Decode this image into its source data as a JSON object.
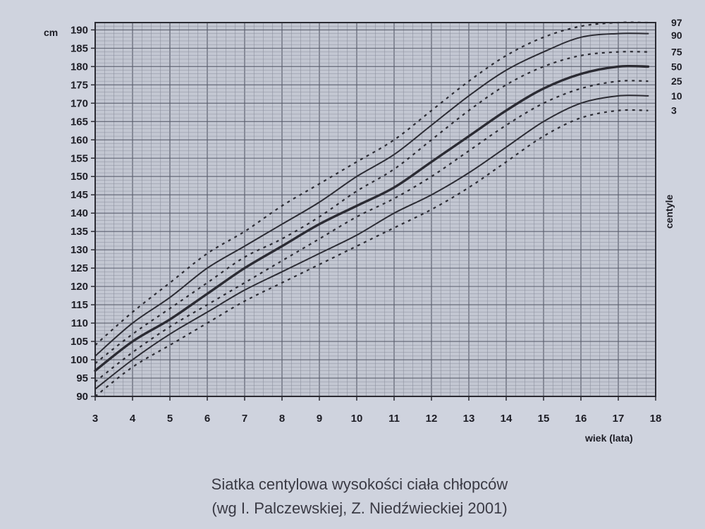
{
  "chart_data": {
    "type": "line",
    "title": "",
    "xlabel": "wiek (lata)",
    "ylabel": "cm",
    "legend_title": "centyle",
    "xlim": [
      3,
      18
    ],
    "ylim": [
      90,
      192
    ],
    "x_ticks": [
      "3",
      "4",
      "5",
      "6",
      "7",
      "8",
      "9",
      "10",
      "11",
      "12",
      "13",
      "14",
      "15",
      "16",
      "17",
      "18"
    ],
    "y_ticks": [
      "90",
      "95",
      "100",
      "105",
      "110",
      "115",
      "120",
      "125",
      "130",
      "135",
      "140",
      "145",
      "150",
      "155",
      "160",
      "165",
      "170",
      "175",
      "180",
      "185",
      "190"
    ],
    "grid": true,
    "legend_position": "right",
    "x": [
      3,
      4,
      5,
      6,
      7,
      8,
      9,
      10,
      11,
      12,
      13,
      14,
      15,
      16,
      17,
      17.8
    ],
    "series": [
      {
        "name": "97",
        "style": "dashed",
        "values": [
          104,
          113,
          121,
          129,
          135,
          142,
          148,
          154,
          160,
          168,
          176,
          183,
          188,
          191,
          192,
          192
        ]
      },
      {
        "name": "90",
        "style": "solid",
        "values": [
          101,
          110,
          117,
          125,
          131,
          137,
          143,
          150,
          156,
          164,
          172,
          179,
          184,
          188,
          189,
          189
        ]
      },
      {
        "name": "75",
        "style": "dashed",
        "values": [
          99,
          107,
          114,
          121,
          128,
          133,
          139,
          146,
          152,
          160,
          168,
          175,
          180,
          183,
          184,
          184
        ]
      },
      {
        "name": "50",
        "style": "bold",
        "values": [
          97,
          105,
          111,
          118,
          125,
          131,
          137,
          142,
          147,
          154,
          161,
          168,
          174,
          178,
          180,
          180
        ]
      },
      {
        "name": "25",
        "style": "dashed",
        "values": [
          94,
          102,
          109,
          115,
          121,
          127,
          133,
          139,
          144,
          150,
          157,
          164,
          170,
          174,
          176,
          176
        ]
      },
      {
        "name": "10",
        "style": "solid",
        "values": [
          92,
          100,
          107,
          113,
          119,
          124,
          129,
          134,
          140,
          145,
          151,
          158,
          165,
          170,
          172,
          172
        ]
      },
      {
        "name": "3",
        "style": "dashed",
        "values": [
          90,
          98,
          104,
          110,
          116,
          121,
          126,
          131,
          136,
          141,
          147,
          154,
          161,
          166,
          168,
          168
        ]
      }
    ],
    "caption": [
      "Siatka centylowa wysokości ciała chłopców",
      "(wg I. Palczewskiej, Z. Niedźwieckiej 2001)"
    ]
  },
  "colors": {
    "page": "#cfd3de",
    "plot_bg": "#c3c7d2",
    "grid_minor": "#8e92a0",
    "grid_major": "#5d6170",
    "lines": "#2b2b33",
    "text": "#1d1d25"
  }
}
